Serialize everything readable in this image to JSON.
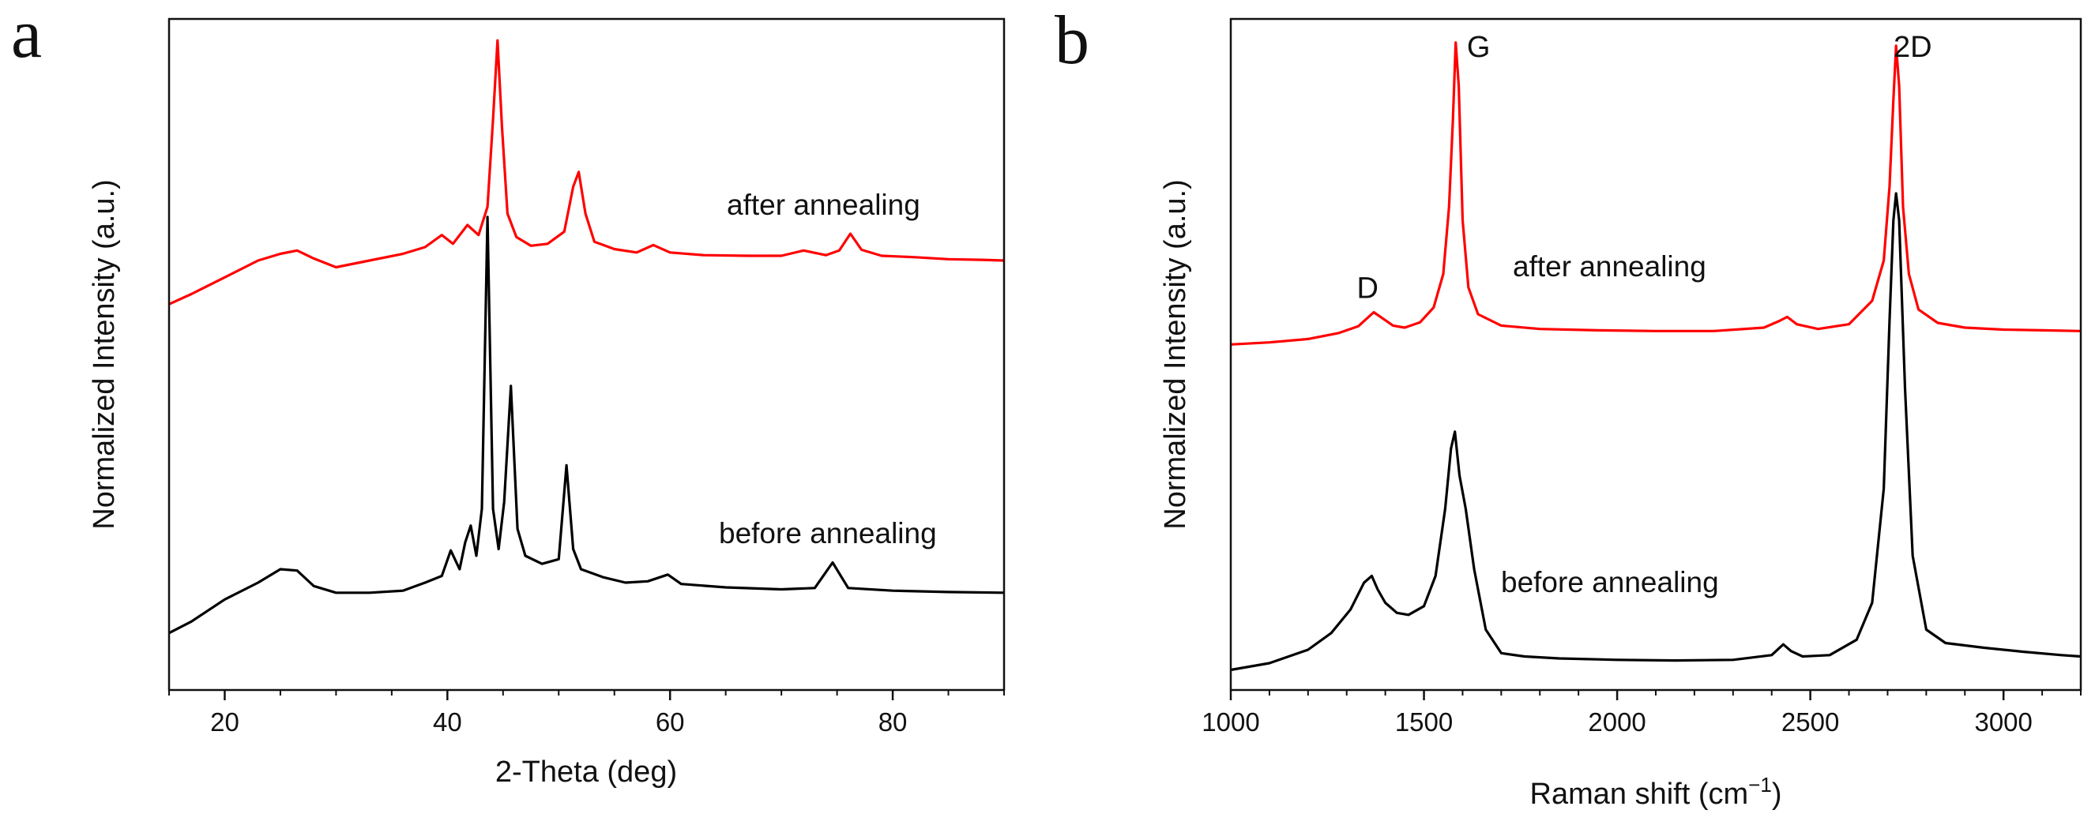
{
  "panels": [
    {
      "letter": "a",
      "chart_data": {
        "type": "line",
        "title": "",
        "xlabel": "2-Theta (deg)",
        "ylabel": "Normalized Intensity (a.u.)",
        "xlim": [
          15,
          90
        ],
        "ylim": [
          0,
          1
        ],
        "x_ticks": [
          20,
          40,
          60,
          80
        ],
        "y_tick_labels_shown": false,
        "grid": false,
        "annotations": [
          "after annealing",
          "before annealing"
        ],
        "peak_labels": [],
        "series": [
          {
            "color": "#ff0000",
            "annotation": "after annealing",
            "x": [
              15,
              17,
              20,
              23,
              25,
              26.5,
              28,
              30,
              33,
              36,
              38,
              39.5,
              40.5,
              41.8,
              42.8,
              43.6,
              44.1,
              44.5,
              44.9,
              45.4,
              46.2,
              47.5,
              49,
              50.5,
              51.3,
              51.8,
              52.4,
              53.2,
              55,
              57,
              58.5,
              60,
              63,
              67,
              70,
              72,
              74,
              75.2,
              76.2,
              77.2,
              79,
              82,
              85,
              88,
              90
            ],
            "y": [
              0.575,
              0.59,
              0.615,
              0.64,
              0.65,
              0.655,
              0.643,
              0.63,
              0.64,
              0.65,
              0.66,
              0.678,
              0.665,
              0.693,
              0.678,
              0.72,
              0.85,
              0.968,
              0.84,
              0.71,
              0.675,
              0.662,
              0.665,
              0.683,
              0.75,
              0.772,
              0.71,
              0.668,
              0.657,
              0.652,
              0.663,
              0.652,
              0.648,
              0.647,
              0.647,
              0.655,
              0.648,
              0.655,
              0.68,
              0.656,
              0.647,
              0.645,
              0.642,
              0.641,
              0.64
            ]
          },
          {
            "color": "#000000",
            "annotation": "before annealing",
            "x": [
              15,
              17,
              20,
              23,
              25,
              26.5,
              28,
              30,
              33,
              36,
              38,
              39.5,
              40.3,
              41.1,
              41.6,
              42.1,
              42.6,
              43.1,
              43.6,
              44.1,
              44.6,
              45.1,
              45.7,
              46.3,
              47,
              48.5,
              50,
              50.7,
              51.3,
              52,
              54,
              56,
              58,
              59.8,
              61,
              65,
              70,
              73,
              74.6,
              76,
              80,
              85,
              90
            ],
            "y": [
              0.085,
              0.102,
              0.135,
              0.16,
              0.18,
              0.178,
              0.155,
              0.145,
              0.145,
              0.148,
              0.16,
              0.17,
              0.208,
              0.18,
              0.22,
              0.245,
              0.2,
              0.27,
              0.705,
              0.27,
              0.21,
              0.28,
              0.453,
              0.24,
              0.2,
              0.188,
              0.195,
              0.335,
              0.21,
              0.18,
              0.168,
              0.16,
              0.162,
              0.172,
              0.158,
              0.153,
              0.15,
              0.152,
              0.19,
              0.152,
              0.148,
              0.146,
              0.145
            ]
          }
        ]
      }
    },
    {
      "letter": "b",
      "chart_data": {
        "type": "line",
        "title": "",
        "xlabel": "Raman shift (cm",
        "xlabel_superscript": "−1",
        "xlabel_suffix": ")",
        "ylabel": "Normalized Intensity (a.u.)",
        "xlim": [
          1000,
          3200
        ],
        "ylim": [
          0,
          1
        ],
        "x_ticks": [
          1000,
          1500,
          2000,
          2500,
          3000
        ],
        "y_tick_labels_shown": false,
        "grid": false,
        "annotations": [
          "after annealing",
          "before annealing"
        ],
        "peak_labels": [
          {
            "text": "D",
            "x": 1350
          },
          {
            "text": "G",
            "x": 1580
          },
          {
            "text": "2D",
            "x": 2720
          }
        ],
        "series": [
          {
            "color": "#ff0000",
            "annotation": "after annealing",
            "x": [
              1000,
              1100,
              1200,
              1280,
              1330,
              1355,
              1370,
              1390,
              1420,
              1450,
              1490,
              1525,
              1550,
              1565,
              1575,
              1582,
              1590,
              1600,
              1615,
              1640,
              1700,
              1800,
              1950,
              2100,
              2250,
              2380,
              2420,
              2440,
              2465,
              2520,
              2600,
              2660,
              2690,
              2705,
              2715,
              2722,
              2730,
              2740,
              2755,
              2780,
              2830,
              2900,
              3000,
              3100,
              3200
            ],
            "y": [
              0.515,
              0.518,
              0.523,
              0.532,
              0.542,
              0.555,
              0.563,
              0.555,
              0.543,
              0.54,
              0.548,
              0.57,
              0.62,
              0.72,
              0.85,
              0.965,
              0.9,
              0.7,
              0.6,
              0.56,
              0.543,
              0.538,
              0.536,
              0.535,
              0.535,
              0.54,
              0.55,
              0.556,
              0.545,
              0.538,
              0.545,
              0.58,
              0.64,
              0.75,
              0.88,
              0.96,
              0.9,
              0.72,
              0.62,
              0.567,
              0.547,
              0.54,
              0.537,
              0.536,
              0.535
            ]
          },
          {
            "color": "#000000",
            "annotation": "before annealing",
            "x": [
              1000,
              1100,
              1200,
              1260,
              1310,
              1345,
              1365,
              1380,
              1400,
              1430,
              1460,
              1500,
              1530,
              1555,
              1570,
              1580,
              1592,
              1608,
              1630,
              1660,
              1700,
              1760,
              1850,
              2000,
              2150,
              2300,
              2400,
              2430,
              2450,
              2480,
              2550,
              2620,
              2660,
              2690,
              2705,
              2715,
              2722,
              2730,
              2745,
              2765,
              2800,
              2850,
              2950,
              3050,
              3150,
              3200
            ],
            "y": [
              0.03,
              0.04,
              0.06,
              0.085,
              0.12,
              0.16,
              0.17,
              0.15,
              0.13,
              0.115,
              0.112,
              0.125,
              0.17,
              0.27,
              0.36,
              0.385,
              0.32,
              0.27,
              0.18,
              0.09,
              0.055,
              0.05,
              0.047,
              0.045,
              0.044,
              0.045,
              0.052,
              0.068,
              0.058,
              0.05,
              0.052,
              0.075,
              0.13,
              0.3,
              0.55,
              0.7,
              0.74,
              0.7,
              0.45,
              0.2,
              0.09,
              0.07,
              0.063,
              0.057,
              0.052,
              0.05
            ]
          }
        ]
      }
    }
  ]
}
